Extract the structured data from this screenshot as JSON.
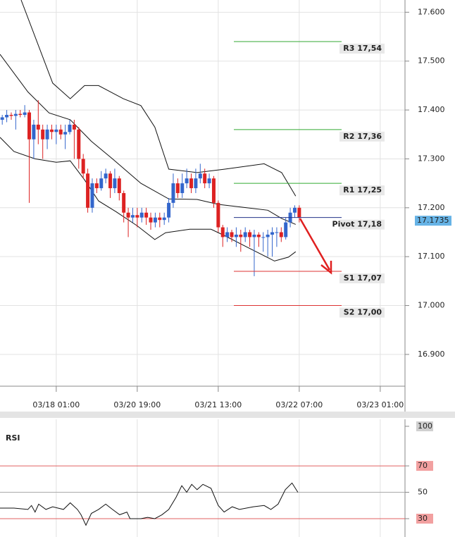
{
  "chart_data": [
    {
      "type": "candlestick",
      "xlim": [
        -0.5,
        89.5
      ],
      "xticks": [
        {
          "value": 12,
          "label": "03/18 01:00"
        },
        {
          "value": 30,
          "label": "03/20 19:00"
        },
        {
          "value": 48,
          "label": "03/21 13:00"
        },
        {
          "value": 66,
          "label": "03/22 07:00"
        },
        {
          "value": 84,
          "label": "03/23 01:00"
        }
      ],
      "ylim": [
        16.835,
        17.625
      ],
      "yticks": [
        {
          "value": 17.6,
          "label": "17.600"
        },
        {
          "value": 17.5,
          "label": "17.500"
        },
        {
          "value": 17.4,
          "label": "17.400"
        },
        {
          "value": 17.3,
          "label": "17.300"
        },
        {
          "value": 17.2,
          "label": "17.200"
        },
        {
          "value": 17.1,
          "label": "17.100"
        },
        {
          "value": 17.0,
          "label": "17.000"
        },
        {
          "value": 16.9,
          "label": "16.900"
        }
      ],
      "grid": true,
      "up_color": "#3366cc",
      "down_color": "#dd2222",
      "open": [
        17.38,
        17.385,
        17.39,
        17.388,
        17.392,
        17.39,
        17.395,
        17.34,
        17.37,
        17.36,
        17.34,
        17.36,
        17.355,
        17.36,
        17.35,
        17.355,
        17.37,
        17.36,
        17.3,
        17.27,
        17.2,
        17.25,
        17.24,
        17.26,
        17.27,
        17.24,
        17.26,
        17.23,
        17.19,
        17.18,
        17.185,
        17.18,
        17.19,
        17.18,
        17.17,
        17.18,
        17.175,
        17.18,
        17.21,
        17.25,
        17.23,
        17.25,
        17.26,
        17.24,
        17.26,
        17.27,
        17.25,
        17.26,
        17.21,
        17.16,
        17.14,
        17.15,
        17.14,
        17.145,
        17.14,
        17.15,
        17.14,
        17.145,
        17.14,
        17.14,
        17.145,
        17.15,
        17.15,
        17.14,
        17.17,
        17.19,
        17.2
      ],
      "high": [
        17.39,
        17.4,
        17.395,
        17.4,
        17.4,
        17.41,
        17.4,
        17.38,
        17.42,
        17.37,
        17.37,
        17.37,
        17.37,
        17.37,
        17.37,
        17.38,
        17.38,
        17.365,
        17.31,
        17.28,
        17.26,
        17.26,
        17.275,
        17.28,
        17.275,
        17.28,
        17.265,
        17.235,
        17.2,
        17.2,
        17.2,
        17.2,
        17.2,
        17.19,
        17.19,
        17.19,
        17.19,
        17.22,
        17.27,
        17.26,
        17.27,
        17.28,
        17.27,
        17.28,
        17.29,
        17.28,
        17.27,
        17.265,
        17.215,
        17.165,
        17.16,
        17.155,
        17.16,
        17.155,
        17.16,
        17.155,
        17.155,
        17.15,
        17.15,
        17.155,
        17.16,
        17.16,
        17.16,
        17.18,
        17.2,
        17.205,
        17.205
      ],
      "low": [
        17.37,
        17.375,
        17.38,
        17.36,
        17.385,
        17.385,
        17.21,
        17.3,
        17.33,
        17.3,
        17.32,
        17.34,
        17.33,
        17.34,
        17.32,
        17.35,
        17.3,
        17.28,
        17.26,
        17.19,
        17.19,
        17.23,
        17.235,
        17.25,
        17.22,
        17.23,
        17.215,
        17.17,
        17.14,
        17.17,
        17.16,
        17.17,
        17.165,
        17.155,
        17.16,
        17.16,
        17.165,
        17.17,
        17.2,
        17.22,
        17.22,
        17.24,
        17.23,
        17.23,
        17.25,
        17.24,
        17.24,
        17.2,
        17.15,
        17.12,
        17.13,
        17.13,
        17.12,
        17.11,
        17.13,
        17.12,
        17.06,
        17.12,
        17.11,
        17.1,
        17.1,
        17.12,
        17.13,
        17.135,
        17.16,
        17.18,
        17.17
      ],
      "close": [
        17.385,
        17.39,
        17.388,
        17.392,
        17.39,
        17.395,
        17.34,
        17.37,
        17.36,
        17.34,
        17.36,
        17.355,
        17.36,
        17.35,
        17.355,
        17.37,
        17.36,
        17.3,
        17.27,
        17.2,
        17.25,
        17.24,
        17.26,
        17.27,
        17.24,
        17.26,
        17.23,
        17.19,
        17.18,
        17.185,
        17.18,
        17.19,
        17.18,
        17.17,
        17.18,
        17.175,
        17.18,
        17.21,
        17.25,
        17.23,
        17.25,
        17.26,
        17.24,
        17.26,
        17.27,
        17.25,
        17.26,
        17.21,
        17.16,
        17.14,
        17.15,
        17.14,
        17.145,
        17.14,
        17.15,
        17.14,
        17.145,
        17.14,
        17.14,
        17.145,
        17.15,
        17.15,
        17.14,
        17.17,
        17.19,
        17.2,
        17.18
      ],
      "band_color": "#111111",
      "bands": [
        {
          "x": [
            4.2,
            11.2,
            15.1,
            18.3,
            21.4,
            26.9,
            30.8,
            33.9,
            37,
            43.3,
            49.5,
            58.2,
            62.1,
            65.2
          ],
          "values": [
            17.625,
            17.455,
            17.423,
            17.45,
            17.45,
            17.423,
            17.409,
            17.365,
            17.279,
            17.272,
            17.279,
            17.29,
            17.272,
            17.224
          ]
        },
        {
          "x": [
            -0.5,
            5.7,
            10.4,
            15.1,
            19.8,
            24.5,
            30.8,
            37,
            43.3,
            48,
            54.3,
            59,
            62.1,
            65.2
          ],
          "values": [
            17.514,
            17.437,
            17.394,
            17.38,
            17.336,
            17.3,
            17.25,
            17.218,
            17.217,
            17.207,
            17.2,
            17.195,
            17.178,
            17.166
          ]
        },
        {
          "x": [
            -0.5,
            2.6,
            7.3,
            12,
            15.1,
            18.3,
            21.4,
            25.3,
            30,
            33.9,
            36.3,
            41.7,
            46.4,
            49.6,
            54.3,
            60.5,
            63.6,
            65.2
          ],
          "values": [
            17.344,
            17.315,
            17.3,
            17.293,
            17.296,
            17.257,
            17.214,
            17.192,
            17.163,
            17.135,
            17.149,
            17.156,
            17.156,
            17.142,
            17.12,
            17.091,
            17.099,
            17.11
          ]
        }
      ],
      "levels": [
        {
          "label": "R3 17,54",
          "value": 17.54,
          "color": "#33aa33"
        },
        {
          "label": "R2 17,36",
          "value": 17.36,
          "color": "#33aa33"
        },
        {
          "label": "R1 17,25",
          "value": 17.25,
          "color": "#33aa33"
        },
        {
          "label": "Pivot 17,18",
          "value": 17.18,
          "color": "#223388"
        },
        {
          "label": "S1 17,07",
          "value": 17.07,
          "color": "#dd3333"
        },
        {
          "label": "S2 17,00",
          "value": 17.0,
          "color": "#dd3333"
        }
      ],
      "last_price": 17.1735
    },
    {
      "type": "line",
      "title": "RSI",
      "xlim": [
        -0.5,
        89.5
      ],
      "xticks": [
        12,
        30,
        48,
        66,
        84
      ],
      "ylim": [
        16.1,
        105.3
      ],
      "yticks": [
        100,
        70,
        50,
        30
      ],
      "color": "#111111",
      "x": [
        -0.5,
        2.6,
        5.7,
        6.5,
        7.3,
        8.1,
        9.7,
        11.2,
        13.6,
        15.1,
        16.7,
        17.5,
        18.6,
        19.8,
        21.4,
        23,
        24.5,
        26.1,
        27.7,
        28.4,
        30.8,
        32.3,
        33.9,
        35.5,
        37,
        38.6,
        39.9,
        41,
        42.1,
        43.3,
        44.6,
        46.4,
        48,
        49.3,
        51.1,
        52.7,
        55.8,
        58.2,
        59.7,
        61.3,
        62.9,
        64.4,
        65.7
      ],
      "values": [
        38,
        38,
        37,
        40,
        35,
        41,
        37,
        39,
        37,
        42,
        37,
        33,
        25,
        34,
        37,
        41,
        37,
        33,
        35,
        30,
        30,
        31,
        30,
        33,
        37,
        46,
        55,
        50,
        56,
        52,
        56,
        53,
        40,
        35,
        39,
        37,
        39,
        40,
        37,
        41,
        52,
        57,
        50
      ]
    }
  ]
}
